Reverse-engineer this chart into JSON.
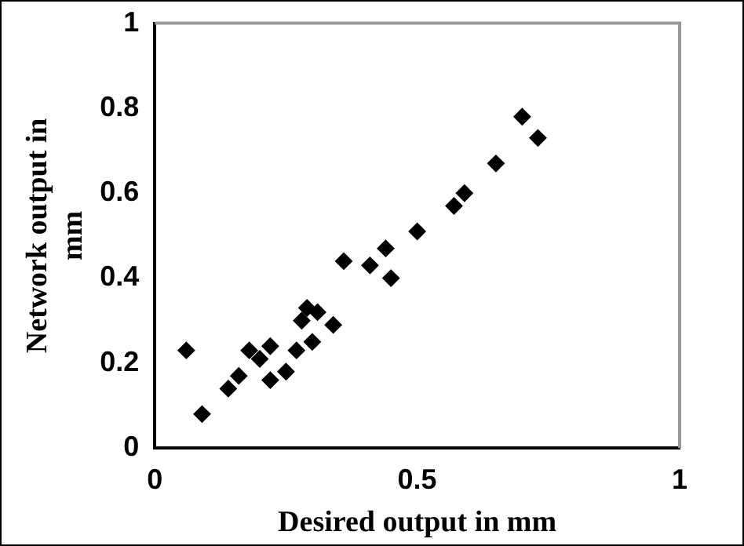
{
  "chart_data": {
    "type": "scatter",
    "xlabel": "Desired output in mm",
    "ylabel": "Network output in mm",
    "x": [
      0.06,
      0.09,
      0.14,
      0.16,
      0.18,
      0.2,
      0.22,
      0.22,
      0.25,
      0.27,
      0.28,
      0.29,
      0.31,
      0.3,
      0.34,
      0.36,
      0.41,
      0.44,
      0.45,
      0.5,
      0.57,
      0.59,
      0.65,
      0.7,
      0.73
    ],
    "values": [
      0.23,
      0.08,
      0.14,
      0.17,
      0.23,
      0.21,
      0.24,
      0.16,
      0.18,
      0.23,
      0.3,
      0.33,
      0.32,
      0.25,
      0.29,
      0.44,
      0.43,
      0.47,
      0.4,
      0.51,
      0.57,
      0.6,
      0.67,
      0.78,
      0.73
    ],
    "color": "#000000",
    "marker": "diamond",
    "xlim": [
      0,
      1
    ],
    "ylim": [
      0,
      1
    ],
    "xticks": [
      0,
      0.5,
      1
    ],
    "yticks": [
      0,
      0.2,
      0.4,
      0.6,
      0.8,
      1
    ],
    "grid": false,
    "legend": false
  }
}
